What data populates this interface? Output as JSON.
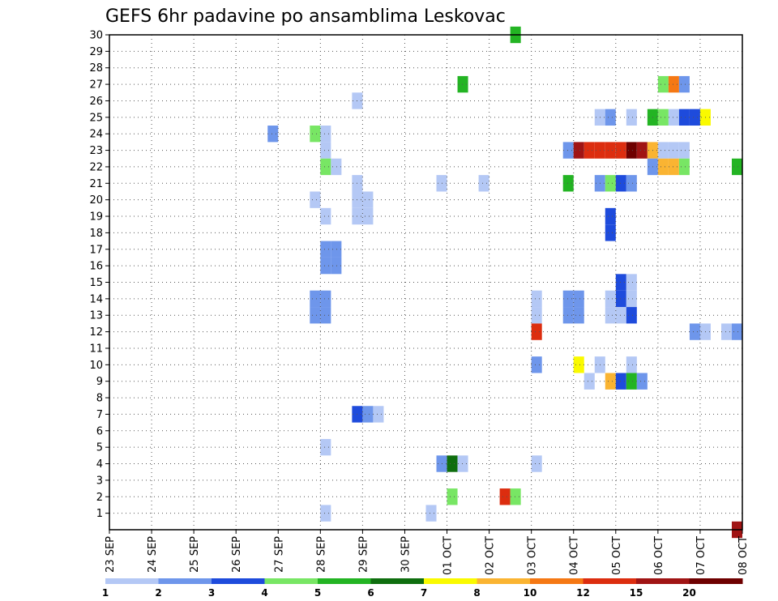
{
  "chart_data": {
    "type": "heatmap",
    "title": "GEFS 6hr padavine po ansamblima Leskovac",
    "xlabel": "",
    "ylabel": "",
    "x_tick_labels": [
      "23 SEP",
      "24 SEP",
      "25 SEP",
      "26 SEP",
      "27 SEP",
      "28 SEP",
      "29 SEP",
      "30 SEP",
      "01 OCT",
      "02 OCT",
      "03 OCT",
      "04 OCT",
      "05 OCT",
      "06 OCT",
      "07 OCT",
      "08 OCT"
    ],
    "y_tick_labels": [
      "1",
      "2",
      "3",
      "4",
      "5",
      "6",
      "7",
      "8",
      "9",
      "10",
      "11",
      "12",
      "13",
      "14",
      "15",
      "16",
      "17",
      "18",
      "19",
      "20",
      "21",
      "22",
      "23",
      "24",
      "25",
      "26",
      "27",
      "28",
      "29",
      "30"
    ],
    "xlim": [
      0,
      15
    ],
    "ylim": [
      0,
      30
    ],
    "grid": true,
    "colorbar": {
      "levels": [
        1,
        2,
        3,
        4,
        5,
        6,
        7,
        8,
        10,
        12,
        15,
        20
      ],
      "colors": [
        "#b4c8f5",
        "#6e96eb",
        "#1e4bdc",
        "#78e664",
        "#23b423",
        "#0f6e0f",
        "#fafa00",
        "#fab432",
        "#f57814",
        "#dc2d0f",
        "#a01414",
        "#6e0000"
      ]
    },
    "cells": [
      {
        "m": 30,
        "d": "2 OCT",
        "h": 12,
        "c": 5
      },
      {
        "m": 27,
        "d": "1 OCT",
        "h": 6,
        "c": 5
      },
      {
        "m": 27,
        "d": "6 OCT",
        "h": 0,
        "c": 4
      },
      {
        "m": 27,
        "d": "6 OCT",
        "h": 6,
        "c": 9
      },
      {
        "m": 27,
        "d": "6 OCT",
        "h": 12,
        "c": 2
      },
      {
        "m": 26,
        "d": "28 SEP",
        "h": 18,
        "c": 1
      },
      {
        "m": 25,
        "d": "4 OCT",
        "h": 12,
        "c": 1
      },
      {
        "m": 25,
        "d": "4 OCT",
        "h": 18,
        "c": 2
      },
      {
        "m": 25,
        "d": "5 OCT",
        "h": 6,
        "c": 1
      },
      {
        "m": 25,
        "d": "5 OCT",
        "h": 18,
        "c": 5
      },
      {
        "m": 25,
        "d": "6 OCT",
        "h": 0,
        "c": 4
      },
      {
        "m": 25,
        "d": "6 OCT",
        "h": 6,
        "c": 1
      },
      {
        "m": 25,
        "d": "6 OCT",
        "h": 12,
        "c": 3
      },
      {
        "m": 25,
        "d": "6 OCT",
        "h": 18,
        "c": 3
      },
      {
        "m": 25,
        "d": "7 OCT",
        "h": 0,
        "c": 7
      },
      {
        "m": 24,
        "d": "26 SEP",
        "h": 18,
        "c": 2
      },
      {
        "m": 24,
        "d": "27 SEP",
        "h": 18,
        "c": 4
      },
      {
        "m": 24,
        "d": "28 SEP",
        "h": 0,
        "c": 1
      },
      {
        "m": 23,
        "d": "28 SEP",
        "h": 0,
        "c": 1
      },
      {
        "m": 23,
        "d": "3 OCT",
        "h": 18,
        "c": 2
      },
      {
        "m": 23,
        "d": "4 OCT",
        "h": 0,
        "c": 11
      },
      {
        "m": 23,
        "d": "4 OCT",
        "h": 6,
        "c": 10
      },
      {
        "m": 23,
        "d": "4 OCT",
        "h": 12,
        "c": 10
      },
      {
        "m": 23,
        "d": "4 OCT",
        "h": 18,
        "c": 10
      },
      {
        "m": 23,
        "d": "5 OCT",
        "h": 0,
        "c": 10
      },
      {
        "m": 23,
        "d": "5 OCT",
        "h": 6,
        "c": 12
      },
      {
        "m": 23,
        "d": "5 OCT",
        "h": 12,
        "c": 11
      },
      {
        "m": 23,
        "d": "5 OCT",
        "h": 18,
        "c": 8
      },
      {
        "m": 23,
        "d": "6 OCT",
        "h": 0,
        "c": 1
      },
      {
        "m": 23,
        "d": "6 OCT",
        "h": 6,
        "c": 1
      },
      {
        "m": 23,
        "d": "6 OCT",
        "h": 12,
        "c": 1
      },
      {
        "m": 22,
        "d": "28 SEP",
        "h": 0,
        "c": 4
      },
      {
        "m": 22,
        "d": "28 SEP",
        "h": 6,
        "c": 1
      },
      {
        "m": 22,
        "d": "5 OCT",
        "h": 18,
        "c": 2
      },
      {
        "m": 22,
        "d": "6 OCT",
        "h": 0,
        "c": 8
      },
      {
        "m": 22,
        "d": "6 OCT",
        "h": 6,
        "c": 8
      },
      {
        "m": 22,
        "d": "6 OCT",
        "h": 12,
        "c": 4
      },
      {
        "m": 22,
        "d": "7 OCT",
        "h": 18,
        "c": 5
      },
      {
        "m": 21,
        "d": "28 SEP",
        "h": 18,
        "c": 1
      },
      {
        "m": 21,
        "d": "30 SEP",
        "h": 18,
        "c": 1
      },
      {
        "m": 21,
        "d": "1 OCT",
        "h": 18,
        "c": 1
      },
      {
        "m": 21,
        "d": "3 OCT",
        "h": 18,
        "c": 5
      },
      {
        "m": 21,
        "d": "4 OCT",
        "h": 12,
        "c": 2
      },
      {
        "m": 21,
        "d": "4 OCT",
        "h": 18,
        "c": 4
      },
      {
        "m": 21,
        "d": "5 OCT",
        "h": 0,
        "c": 3
      },
      {
        "m": 21,
        "d": "5 OCT",
        "h": 6,
        "c": 2
      },
      {
        "m": 20,
        "d": "27 SEP",
        "h": 18,
        "c": 1
      },
      {
        "m": 20,
        "d": "28 SEP",
        "h": 18,
        "c": 1
      },
      {
        "m": 20,
        "d": "29 SEP",
        "h": 0,
        "c": 1
      },
      {
        "m": 19,
        "d": "28 SEP",
        "h": 0,
        "c": 1
      },
      {
        "m": 19,
        "d": "28 SEP",
        "h": 18,
        "c": 1
      },
      {
        "m": 19,
        "d": "29 SEP",
        "h": 0,
        "c": 1
      },
      {
        "m": 19,
        "d": "4 OCT",
        "h": 18,
        "c": 3
      },
      {
        "m": 18,
        "d": "4 OCT",
        "h": 18,
        "c": 3
      },
      {
        "m": 17,
        "d": "28 SEP",
        "h": 0,
        "c": 2
      },
      {
        "m": 17,
        "d": "28 SEP",
        "h": 6,
        "c": 2
      },
      {
        "m": 16,
        "d": "28 SEP",
        "h": 0,
        "c": 2
      },
      {
        "m": 16,
        "d": "28 SEP",
        "h": 6,
        "c": 2
      },
      {
        "m": 15,
        "d": "5 OCT",
        "h": 0,
        "c": 3
      },
      {
        "m": 15,
        "d": "5 OCT",
        "h": 6,
        "c": 1
      },
      {
        "m": 14,
        "d": "5 OCT",
        "h": 0,
        "c": 3
      },
      {
        "m": 14,
        "d": "5 OCT",
        "h": 6,
        "c": 1
      },
      {
        "m": 14,
        "d": "27 SEP",
        "h": 18,
        "c": 2
      },
      {
        "m": 14,
        "d": "28 SEP",
        "h": 0,
        "c": 2
      },
      {
        "m": 14,
        "d": "3 OCT",
        "h": 0,
        "c": 1
      },
      {
        "m": 14,
        "d": "3 OCT",
        "h": 18,
        "c": 2
      },
      {
        "m": 14,
        "d": "4 OCT",
        "h": 0,
        "c": 2
      },
      {
        "m": 14,
        "d": "4 OCT",
        "h": 18,
        "c": 1
      },
      {
        "m": 13,
        "d": "27 SEP",
        "h": 18,
        "c": 2
      },
      {
        "m": 13,
        "d": "28 SEP",
        "h": 0,
        "c": 2
      },
      {
        "m": 13,
        "d": "3 OCT",
        "h": 0,
        "c": 1
      },
      {
        "m": 13,
        "d": "3 OCT",
        "h": 18,
        "c": 2
      },
      {
        "m": 13,
        "d": "4 OCT",
        "h": 0,
        "c": 2
      },
      {
        "m": 13,
        "d": "4 OCT",
        "h": 18,
        "c": 1
      },
      {
        "m": 13,
        "d": "5 OCT",
        "h": 0,
        "c": 1
      },
      {
        "m": 13,
        "d": "5 OCT",
        "h": 6,
        "c": 3
      },
      {
        "m": 12,
        "d": "3 OCT",
        "h": 0,
        "c": 10
      },
      {
        "m": 12,
        "d": "6 OCT",
        "h": 18,
        "c": 2
      },
      {
        "m": 12,
        "d": "7 OCT",
        "h": 0,
        "c": 1
      },
      {
        "m": 12,
        "d": "7 OCT",
        "h": 12,
        "c": 1
      },
      {
        "m": 12,
        "d": "7 OCT",
        "h": 18,
        "c": 2
      },
      {
        "m": 10,
        "d": "3 OCT",
        "h": 0,
        "c": 2
      },
      {
        "m": 10,
        "d": "4 OCT",
        "h": 0,
        "c": 7
      },
      {
        "m": 10,
        "d": "4 OCT",
        "h": 12,
        "c": 1
      },
      {
        "m": 10,
        "d": "5 OCT",
        "h": 6,
        "c": 1
      },
      {
        "m": 9,
        "d": "4 OCT",
        "h": 6,
        "c": 1
      },
      {
        "m": 9,
        "d": "4 OCT",
        "h": 18,
        "c": 8
      },
      {
        "m": 9,
        "d": "5 OCT",
        "h": 0,
        "c": 3
      },
      {
        "m": 9,
        "d": "5 OCT",
        "h": 6,
        "c": 5
      },
      {
        "m": 9,
        "d": "5 OCT",
        "h": 12,
        "c": 2
      },
      {
        "m": 7,
        "d": "28 SEP",
        "h": 18,
        "c": 3
      },
      {
        "m": 7,
        "d": "29 SEP",
        "h": 0,
        "c": 2
      },
      {
        "m": 7,
        "d": "29 SEP",
        "h": 6,
        "c": 1
      },
      {
        "m": 5,
        "d": "28 SEP",
        "h": 0,
        "c": 1
      },
      {
        "m": 4,
        "d": "30 SEP",
        "h": 18,
        "c": 2
      },
      {
        "m": 4,
        "d": "1 OCT",
        "h": 0,
        "c": 6
      },
      {
        "m": 4,
        "d": "1 OCT",
        "h": 6,
        "c": 1
      },
      {
        "m": 4,
        "d": "3 OCT",
        "h": 0,
        "c": 1
      },
      {
        "m": 2,
        "d": "1 OCT",
        "h": 0,
        "c": 4
      },
      {
        "m": 2,
        "d": "2 OCT",
        "h": 6,
        "c": 10
      },
      {
        "m": 2,
        "d": "2 OCT",
        "h": 12,
        "c": 4
      },
      {
        "m": 1,
        "d": "28 SEP",
        "h": 0,
        "c": 1
      },
      {
        "m": 1,
        "d": "30 SEP",
        "h": 12,
        "c": 1
      },
      {
        "m": 0,
        "d": "7 OCT",
        "h": 18,
        "c": 11
      }
    ]
  }
}
